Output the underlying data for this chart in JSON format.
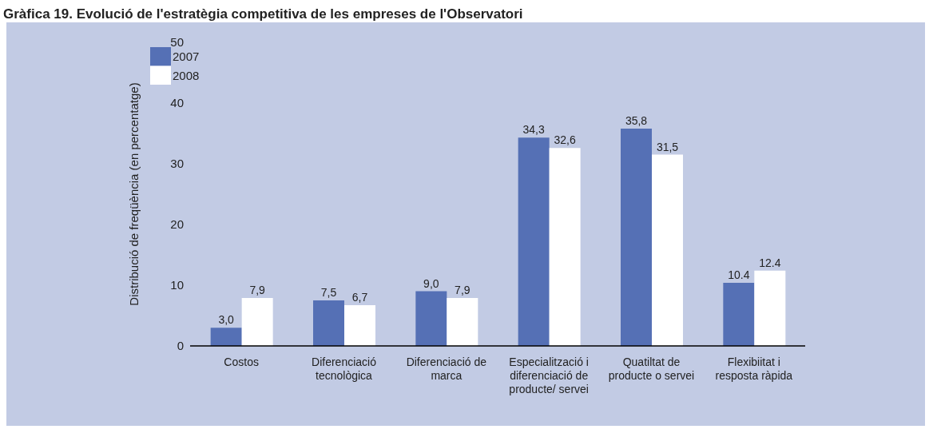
{
  "chart_data": {
    "type": "bar",
    "title": "Gràfica 19. Evolució de l'estratègia competitiva de les empreses de l'Observatori",
    "ylabel": "Distribució de freqüència  (en percentatge)",
    "categories": [
      "Costos",
      "Diferenciació tecnològica",
      "Diferenciació de marca",
      "Especialització i diferenciació de producte/ servei",
      "Quatiltat de producte o servei",
      "Flexibiitat i resposta ràpida"
    ],
    "series": [
      {
        "name": "2007",
        "color": "#5570b5",
        "values": [
          3.0,
          7.5,
          9.0,
          34.3,
          35.8,
          10.4
        ],
        "value_labels": [
          "3,0",
          "7,5",
          "9,0",
          "34,3",
          "35,8",
          "10.4"
        ]
      },
      {
        "name": "2008",
        "color": "#ffffff",
        "values": [
          7.9,
          6.7,
          7.9,
          32.6,
          31.5,
          12.4
        ],
        "value_labels": [
          "7,9",
          "6,7",
          "7,9",
          "32,6",
          "31,5",
          "12.4"
        ]
      }
    ],
    "ylim": [
      0,
      50
    ],
    "yticks": [
      0,
      10,
      20,
      30,
      40,
      50
    ],
    "grid": false,
    "legend": "top left"
  }
}
